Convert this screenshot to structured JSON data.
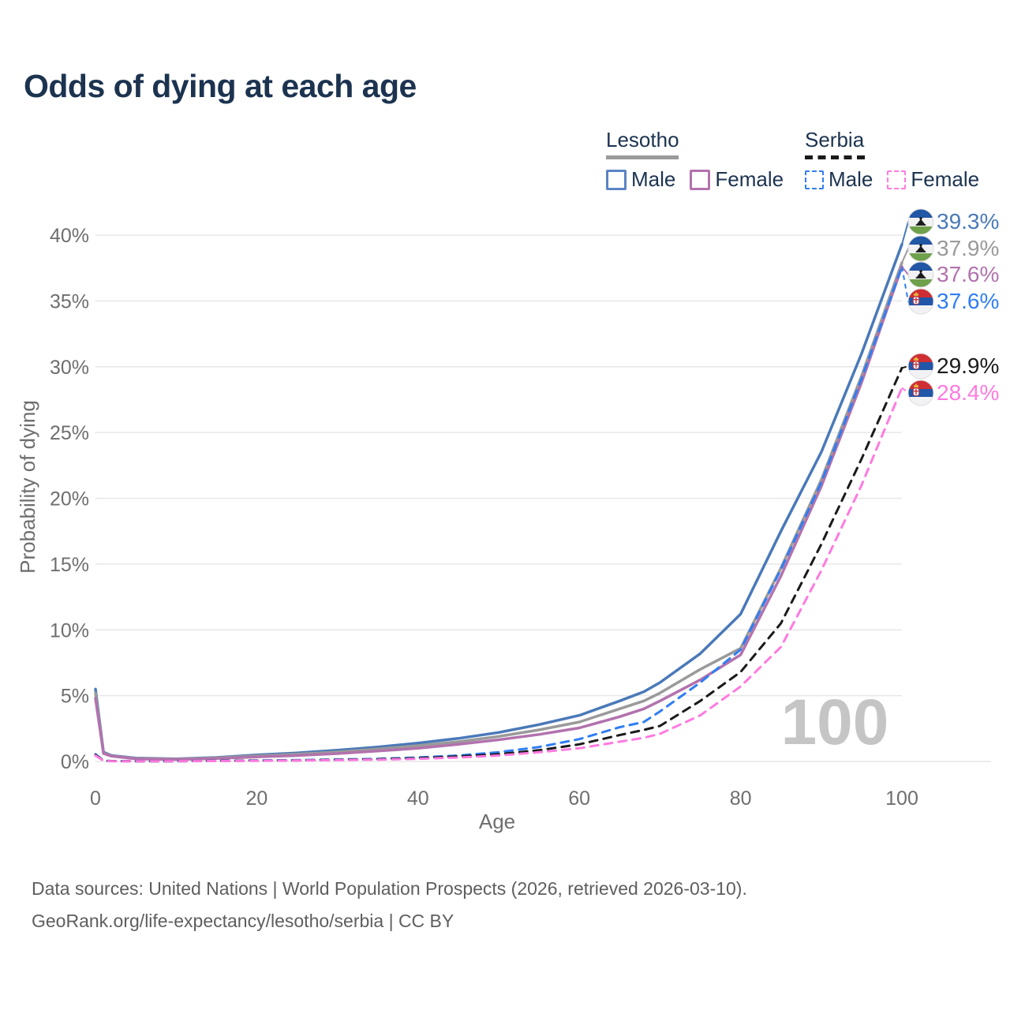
{
  "title": "Odds of dying at each age",
  "legend": {
    "groups": [
      {
        "label": "Lesotho",
        "line_style": "solid",
        "line_color": "#9a9a9a",
        "items": [
          {
            "label": "Male",
            "color": "#4a79b8"
          },
          {
            "label": "Female",
            "color": "#b272ad"
          }
        ]
      },
      {
        "label": "Serbia",
        "line_style": "dashed",
        "line_color": "#1a1a1a",
        "items": [
          {
            "label": "Male",
            "color": "#2f7ef2"
          },
          {
            "label": "Female",
            "color": "#ff7ae0"
          }
        ]
      }
    ]
  },
  "axes": {
    "x": {
      "label": "Age",
      "ticks": [
        {
          "value": 0,
          "label": "0"
        },
        {
          "value": 20,
          "label": "20"
        },
        {
          "value": 40,
          "label": "40"
        },
        {
          "value": 60,
          "label": "60"
        },
        {
          "value": 80,
          "label": "80"
        },
        {
          "value": 100,
          "label": "100"
        }
      ]
    },
    "y": {
      "label": "Probability of dying",
      "ticks": [
        {
          "value": 0,
          "label": "0%"
        },
        {
          "value": 5,
          "label": "5%"
        },
        {
          "value": 10,
          "label": "10%"
        },
        {
          "value": 15,
          "label": "15%"
        },
        {
          "value": 20,
          "label": "20%"
        },
        {
          "value": 25,
          "label": "25%"
        },
        {
          "value": 30,
          "label": "30%"
        },
        {
          "value": 35,
          "label": "35%"
        },
        {
          "value": 40,
          "label": "40%"
        }
      ]
    }
  },
  "watermark": "100",
  "footer": {
    "line1": "Data sources: United Nations | World Population Prospects (2026, retrieved 2026-03-10).",
    "line2": "GeoRank.org/life-expectancy/lesotho/serbia | CC BY"
  },
  "chart_data": {
    "type": "line",
    "title": "Odds of dying at each age",
    "xlabel": "Age",
    "ylabel": "Probability of dying",
    "xlim": [
      0,
      100
    ],
    "ylim": [
      0,
      40
    ],
    "grid": "horizontal",
    "legend_position": "top-right",
    "x": [
      0,
      1,
      2,
      5,
      10,
      15,
      20,
      25,
      30,
      35,
      40,
      45,
      50,
      55,
      60,
      65,
      68,
      70,
      75,
      80,
      85,
      90,
      95,
      100
    ],
    "series": [
      {
        "name": "Lesotho — Male",
        "country": "Lesotho",
        "sex": "male",
        "style": "solid",
        "color": "#4a79b8",
        "end_label": "39.3%",
        "values": [
          5.5,
          0.7,
          0.45,
          0.25,
          0.2,
          0.3,
          0.5,
          0.65,
          0.85,
          1.1,
          1.4,
          1.75,
          2.2,
          2.8,
          3.5,
          4.6,
          5.3,
          6.0,
          8.2,
          11.2,
          17.5,
          23.5,
          31.0,
          39.3
        ]
      },
      {
        "name": "Lesotho — Total",
        "country": "Lesotho",
        "sex": "both",
        "style": "solid",
        "color": "#9a9a9a",
        "end_label": "37.9%",
        "values": [
          5.2,
          0.65,
          0.42,
          0.22,
          0.18,
          0.27,
          0.42,
          0.55,
          0.72,
          0.95,
          1.2,
          1.5,
          1.9,
          2.4,
          3.0,
          4.0,
          4.6,
          5.2,
          7.0,
          8.6,
          14.7,
          21.4,
          29.3,
          37.9
        ]
      },
      {
        "name": "Lesotho — Female",
        "country": "Lesotho",
        "sex": "female",
        "style": "solid",
        "color": "#b272ad",
        "end_label": "37.6%",
        "values": [
          4.8,
          0.6,
          0.4,
          0.2,
          0.15,
          0.22,
          0.35,
          0.45,
          0.6,
          0.8,
          1.0,
          1.3,
          1.65,
          2.05,
          2.55,
          3.4,
          4.0,
          4.6,
          6.2,
          8.1,
          14.1,
          20.9,
          28.8,
          37.6
        ]
      },
      {
        "name": "Serbia — Male",
        "country": "Serbia",
        "sex": "male",
        "style": "dashed",
        "color": "#2f7ef2",
        "end_label": "37.6%",
        "values": [
          0.55,
          0.06,
          0.03,
          0.02,
          0.02,
          0.05,
          0.08,
          0.1,
          0.15,
          0.2,
          0.3,
          0.45,
          0.7,
          1.1,
          1.7,
          2.6,
          3.0,
          3.8,
          6.0,
          8.5,
          14.6,
          21.2,
          29.1,
          37.6
        ]
      },
      {
        "name": "Serbia — Total",
        "country": "Serbia",
        "sex": "both",
        "style": "dashed",
        "color": "#1a1a1a",
        "end_label": "29.9%",
        "values": [
          0.5,
          0.05,
          0.03,
          0.02,
          0.02,
          0.04,
          0.06,
          0.08,
          0.12,
          0.17,
          0.25,
          0.38,
          0.55,
          0.85,
          1.3,
          2.0,
          2.4,
          2.7,
          4.6,
          6.8,
          10.5,
          16.5,
          23.0,
          29.9
        ]
      },
      {
        "name": "Serbia — Female",
        "country": "Serbia",
        "sex": "female",
        "style": "dashed",
        "color": "#ff7ae0",
        "end_label": "28.4%",
        "values": [
          0.45,
          0.05,
          0.02,
          0.015,
          0.015,
          0.03,
          0.05,
          0.07,
          0.1,
          0.14,
          0.2,
          0.3,
          0.45,
          0.7,
          1.0,
          1.5,
          1.8,
          2.1,
          3.5,
          5.7,
          8.7,
          14.5,
          21.0,
          28.4
        ]
      }
    ],
    "flag_colors": {
      "lesotho_blue": "#2257a5",
      "lesotho_white": "#f2f2f4",
      "lesotho_green": "#6fa04a",
      "lesotho_hat": "#1a1a1a",
      "serbia_red": "#cf2e34",
      "serbia_blue": "#2156a8",
      "serbia_white": "#f2f2f4",
      "serbia_crown": "#e3b23c"
    }
  }
}
